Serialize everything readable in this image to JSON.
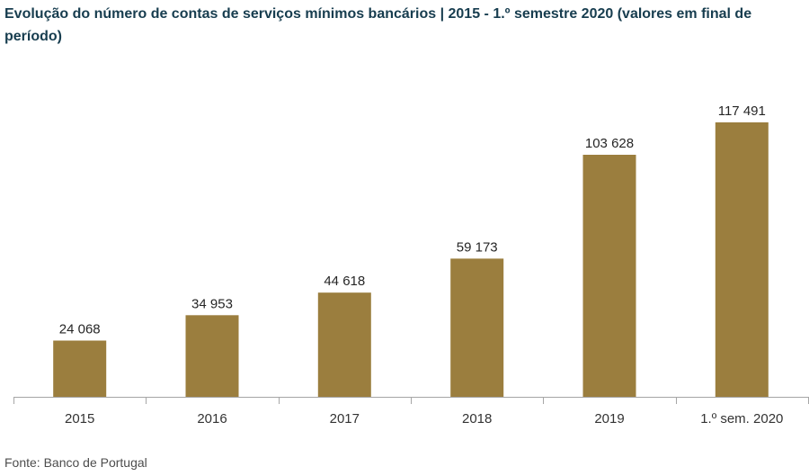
{
  "chart_data": {
    "type": "bar",
    "title": "Evolução do número de contas de serviços mínimos bancários | 2015 - 1.º semestre 2020 (valores em final de período)",
    "categories": [
      "2015",
      "2016",
      "2017",
      "2018",
      "2019",
      "1.º sem. 2020"
    ],
    "values": [
      24068,
      34953,
      44618,
      59173,
      103628,
      117491
    ],
    "data_labels": [
      "24 068",
      "34 953",
      "44 618",
      "59 173",
      "103 628",
      "117 491"
    ],
    "xlabel": "",
    "ylabel": "",
    "y_axis_shown": false,
    "grid": false
  },
  "source": "Fonte: Banco de Portugal",
  "colors": {
    "bar": "#9b7e3e",
    "title": "#173d4f",
    "axis": "#a6a6a6"
  }
}
